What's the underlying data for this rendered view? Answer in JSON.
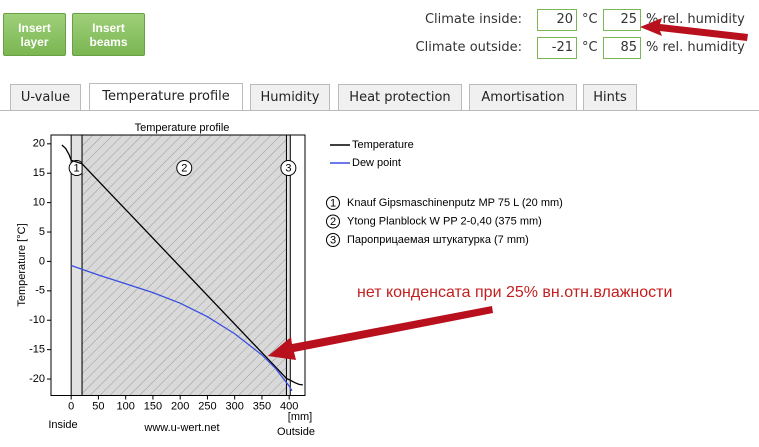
{
  "toolbar": {
    "buttons": [
      "Insert layer",
      "Insert beams"
    ]
  },
  "climate": [
    {
      "label": "Climate inside:",
      "temperature": 20,
      "temperature_unit": "°C",
      "humidity": 25,
      "humidity_unit": "% rel. humidity"
    },
    {
      "label": "Climate outside:",
      "temperature": -21,
      "temperature_unit": "°C",
      "humidity": 85,
      "humidity_unit": "% rel. humidity"
    }
  ],
  "tabs": {
    "items": [
      "U-value",
      "Temperature profile",
      "Humidity",
      "Heat protection",
      "Amortisation",
      "Hints"
    ],
    "active": 1
  },
  "chart_data": {
    "type": "line",
    "title": "Temperature profile",
    "y_label": "Temperature [°C]",
    "x_unit_label": "[mm]",
    "inside_label": "Inside",
    "outside_label": "Outside",
    "watermark": "www.u-wert.net",
    "xlim": [
      -37,
      429
    ],
    "ylim": [
      -22.8,
      21.5
    ],
    "xticks": [
      0,
      50,
      100,
      150,
      200,
      250,
      300,
      350,
      400
    ],
    "yticks": [
      20,
      15,
      10,
      5,
      0,
      -5,
      -10,
      -15,
      -20
    ],
    "series": [
      {
        "name": "Temperature",
        "color": "#000000",
        "x": [
          -17,
          -10,
          -4,
          0,
          20,
          395,
          402,
          410,
          418,
          425
        ],
        "values": [
          19.8,
          19.2,
          18.2,
          17.2,
          16.6,
          -19.9,
          -20.2,
          -20.6,
          -20.9,
          -21
        ]
      },
      {
        "name": "Dew point",
        "color": "#3a4fe0",
        "x": [
          0,
          50,
          100,
          150,
          200,
          250,
          300,
          350,
          375,
          400,
          405
        ],
        "values": [
          -0.7,
          -2.3,
          -3.8,
          -5.3,
          -7.1,
          -9.4,
          -12.3,
          -15.9,
          -18.2,
          -21.2,
          -22
        ]
      }
    ],
    "layers": [
      {
        "number": 1,
        "name": "Knauf Gipsmaschinenputz MP 75 L (20 mm)",
        "start": 0,
        "end": 20
      },
      {
        "number": 2,
        "name": "Ytong Planblock W PP 2-0,40 (375 mm)",
        "start": 20,
        "end": 395
      },
      {
        "number": 3,
        "name": "Пароприцаемая штукатурка (7 mm)",
        "start": 395,
        "end": 402
      }
    ]
  },
  "annotation": {
    "text": "нет конденсата при 25% вн.отн.влажности"
  }
}
